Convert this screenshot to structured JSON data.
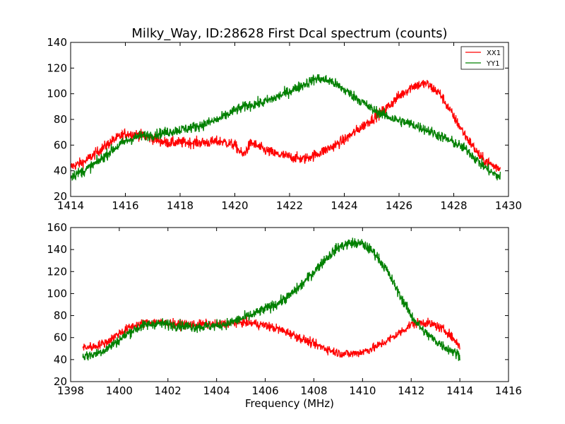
{
  "figure": {
    "title": "Milky_Way, ID:28628 First Dcal spectrum (counts)",
    "xlabel": "Frequency (MHz)"
  },
  "legend": {
    "location": "top-right",
    "entries": [
      {
        "label": "XX1",
        "color": "#ff0000"
      },
      {
        "label": "YY1",
        "color": "#008000"
      }
    ]
  },
  "chart_data": [
    {
      "type": "line",
      "xlim": [
        1414,
        1430
      ],
      "ylim": [
        20,
        140
      ],
      "xticks": [
        "1414",
        "1416",
        "1418",
        "1420",
        "1422",
        "1424",
        "1426",
        "1428",
        "1430"
      ],
      "yticks": [
        "20",
        "40",
        "60",
        "80",
        "100",
        "120",
        "140"
      ],
      "grid": false,
      "series": [
        {
          "name": "XX1",
          "color": "#ff0000",
          "points": [
            [
              1414.0,
              43
            ],
            [
              1414.5,
              47
            ],
            [
              1415.0,
              55
            ],
            [
              1415.5,
              63
            ],
            [
              1416.0,
              69
            ],
            [
              1416.5,
              68
            ],
            [
              1417.0,
              65
            ],
            [
              1417.5,
              62
            ],
            [
              1418.0,
              62
            ],
            [
              1418.5,
              62
            ],
            [
              1419.0,
              62
            ],
            [
              1419.5,
              63
            ],
            [
              1420.0,
              60
            ],
            [
              1420.3,
              52
            ],
            [
              1420.6,
              62
            ],
            [
              1421.0,
              57
            ],
            [
              1421.5,
              53
            ],
            [
              1422.0,
              51
            ],
            [
              1422.5,
              49
            ],
            [
              1423.0,
              53
            ],
            [
              1423.5,
              58
            ],
            [
              1424.0,
              64
            ],
            [
              1424.5,
              72
            ],
            [
              1425.0,
              80
            ],
            [
              1425.5,
              88
            ],
            [
              1426.0,
              98
            ],
            [
              1426.5,
              106
            ],
            [
              1427.0,
              108
            ],
            [
              1427.5,
              100
            ],
            [
              1428.0,
              82
            ],
            [
              1428.5,
              65
            ],
            [
              1429.0,
              50
            ],
            [
              1429.5,
              43
            ],
            [
              1429.7,
              42
            ]
          ],
          "noise": 3
        },
        {
          "name": "YY1",
          "color": "#008000",
          "points": [
            [
              1414.0,
              36
            ],
            [
              1414.5,
              40
            ],
            [
              1415.0,
              47
            ],
            [
              1415.5,
              56
            ],
            [
              1416.0,
              63
            ],
            [
              1416.5,
              67
            ],
            [
              1417.0,
              68
            ],
            [
              1417.5,
              70
            ],
            [
              1418.0,
              72
            ],
            [
              1418.5,
              74
            ],
            [
              1419.0,
              77
            ],
            [
              1419.5,
              81
            ],
            [
              1420.0,
              87
            ],
            [
              1420.5,
              91
            ],
            [
              1421.0,
              93
            ],
            [
              1421.5,
              97
            ],
            [
              1422.0,
              102
            ],
            [
              1422.5,
              107
            ],
            [
              1423.0,
              112
            ],
            [
              1423.5,
              110
            ],
            [
              1424.0,
              103
            ],
            [
              1424.5,
              96
            ],
            [
              1425.0,
              88
            ],
            [
              1425.5,
              83
            ],
            [
              1426.0,
              79
            ],
            [
              1426.5,
              76
            ],
            [
              1427.0,
              72
            ],
            [
              1427.5,
              67
            ],
            [
              1428.0,
              62
            ],
            [
              1428.5,
              56
            ],
            [
              1429.0,
              45
            ],
            [
              1429.5,
              37
            ],
            [
              1429.7,
              35
            ]
          ],
          "noise": 3
        }
      ]
    },
    {
      "type": "line",
      "xlim": [
        1398,
        1416
      ],
      "ylim": [
        20,
        160
      ],
      "xticks": [
        "1398",
        "1400",
        "1402",
        "1404",
        "1406",
        "1408",
        "1410",
        "1412",
        "1414",
        "1416"
      ],
      "yticks": [
        "20",
        "40",
        "60",
        "80",
        "100",
        "120",
        "140",
        "160"
      ],
      "grid": false,
      "series": [
        {
          "name": "XX1",
          "color": "#ff0000",
          "points": [
            [
              1398.5,
              51
            ],
            [
              1399.0,
              52
            ],
            [
              1399.5,
              56
            ],
            [
              1400.0,
              64
            ],
            [
              1400.5,
              70
            ],
            [
              1401.0,
              73
            ],
            [
              1401.5,
              74
            ],
            [
              1402.0,
              73
            ],
            [
              1402.5,
              72
            ],
            [
              1403.0,
              72
            ],
            [
              1403.5,
              72
            ],
            [
              1404.0,
              72
            ],
            [
              1404.5,
              73
            ],
            [
              1405.0,
              74
            ],
            [
              1405.5,
              73
            ],
            [
              1406.0,
              71
            ],
            [
              1406.5,
              68
            ],
            [
              1407.0,
              64
            ],
            [
              1407.5,
              59
            ],
            [
              1408.0,
              54
            ],
            [
              1408.5,
              50
            ],
            [
              1409.0,
              46
            ],
            [
              1409.5,
              45
            ],
            [
              1410.0,
              47
            ],
            [
              1410.5,
              51
            ],
            [
              1411.0,
              57
            ],
            [
              1411.5,
              64
            ],
            [
              1412.0,
              72
            ],
            [
              1412.5,
              74
            ],
            [
              1413.0,
              71
            ],
            [
              1413.5,
              65
            ],
            [
              1414.0,
              52
            ]
          ],
          "noise": 3
        },
        {
          "name": "YY1",
          "color": "#008000",
          "points": [
            [
              1398.5,
              43
            ],
            [
              1399.0,
              45
            ],
            [
              1399.5,
              50
            ],
            [
              1400.0,
              58
            ],
            [
              1400.5,
              66
            ],
            [
              1401.0,
              71
            ],
            [
              1401.5,
              73
            ],
            [
              1402.0,
              72
            ],
            [
              1402.5,
              71
            ],
            [
              1403.0,
              70
            ],
            [
              1403.5,
              70
            ],
            [
              1404.0,
              71
            ],
            [
              1404.5,
              73
            ],
            [
              1405.0,
              77
            ],
            [
              1405.5,
              81
            ],
            [
              1406.0,
              86
            ],
            [
              1406.5,
              91
            ],
            [
              1407.0,
              98
            ],
            [
              1407.5,
              108
            ],
            [
              1408.0,
              120
            ],
            [
              1408.5,
              132
            ],
            [
              1409.0,
              142
            ],
            [
              1409.5,
              146
            ],
            [
              1410.0,
              145
            ],
            [
              1410.5,
              137
            ],
            [
              1411.0,
              121
            ],
            [
              1411.5,
              100
            ],
            [
              1412.0,
              80
            ],
            [
              1412.5,
              66
            ],
            [
              1413.0,
              57
            ],
            [
              1413.5,
              50
            ],
            [
              1414.0,
              44
            ]
          ],
          "noise": 3.5
        }
      ]
    }
  ]
}
